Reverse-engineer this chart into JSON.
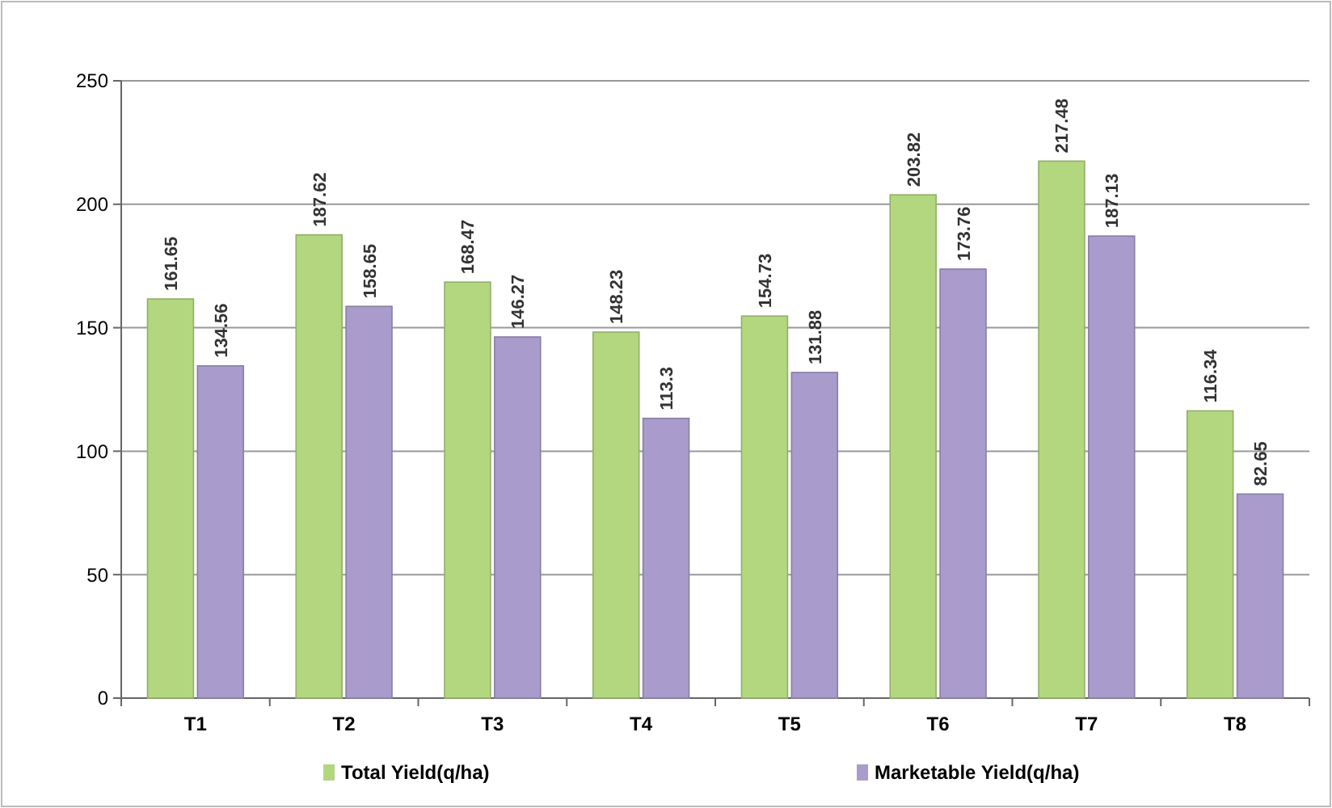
{
  "chart_data": {
    "type": "bar",
    "categories": [
      "T1",
      "T2",
      "T3",
      "T4",
      "T5",
      "T6",
      "T7",
      "T8"
    ],
    "series": [
      {
        "name": "Total Yield(q/ha)",
        "color": "#b3d77f",
        "values": [
          161.65,
          187.62,
          168.47,
          148.23,
          154.73,
          203.82,
          217.48,
          116.34
        ]
      },
      {
        "name": "Marketable Yield(q/ha)",
        "color": "#a99ccc",
        "values": [
          134.56,
          158.65,
          146.27,
          113.3,
          131.88,
          173.76,
          187.13,
          82.65
        ]
      }
    ],
    "ylim": [
      0,
      250
    ],
    "yticks": [
      0,
      50,
      100,
      150,
      200,
      250
    ],
    "grid": "y",
    "legend": "bottom",
    "data_labels": true
  }
}
